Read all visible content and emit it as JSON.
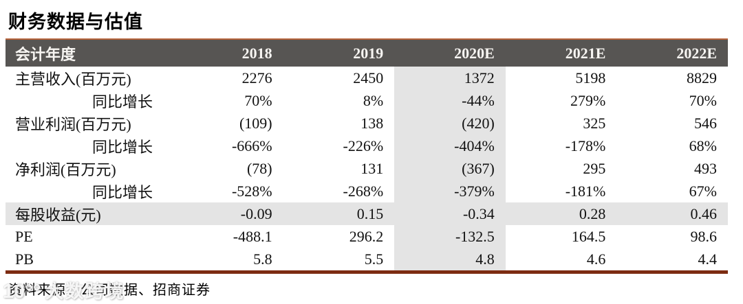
{
  "title": "财务数据与估值",
  "table": {
    "header": [
      "会计年度",
      "2018",
      "2019",
      "2020E",
      "2021E",
      "2022E"
    ],
    "highlight_column": "2020E",
    "rows": [
      {
        "label": "主营收入(百万元)",
        "indent": false,
        "highlight_row": false,
        "values": [
          "2276",
          "2450",
          "1372",
          "5198",
          "8829"
        ]
      },
      {
        "label": "同比增长",
        "indent": true,
        "highlight_row": false,
        "values": [
          "70%",
          "8%",
          "-44%",
          "279%",
          "70%"
        ]
      },
      {
        "label": "营业利润(百万元)",
        "indent": false,
        "highlight_row": false,
        "values": [
          "(109)",
          "138",
          "(420)",
          "325",
          "546"
        ]
      },
      {
        "label": "同比增长",
        "indent": true,
        "highlight_row": false,
        "values": [
          "-666%",
          "-226%",
          "-404%",
          "-178%",
          "68%"
        ]
      },
      {
        "label": "净利润(百万元)",
        "indent": false,
        "highlight_row": false,
        "values": [
          "(78)",
          "131",
          "(367)",
          "295",
          "493"
        ]
      },
      {
        "label": "同比增长",
        "indent": true,
        "highlight_row": false,
        "values": [
          "-528%",
          "-268%",
          "-379%",
          "-181%",
          "67%"
        ]
      },
      {
        "label": "每股收益(元)",
        "indent": false,
        "highlight_row": true,
        "values": [
          "-0.09",
          "0.15",
          "-0.34",
          "0.28",
          "0.46"
        ]
      },
      {
        "label": "PE",
        "indent": false,
        "highlight_row": false,
        "values": [
          "-488.1",
          "296.2",
          "-132.5",
          "164.5",
          "98.6"
        ]
      },
      {
        "label": "PB",
        "indent": false,
        "highlight_row": false,
        "values": [
          "5.8",
          "5.5",
          "4.8",
          "4.6",
          "4.4"
        ]
      }
    ]
  },
  "footer": {
    "source": "资料来源：公司数据、招商证券"
  },
  "watermark": {
    "logo": "10°°",
    "text": "大数跨境"
  },
  "colors": {
    "header_bg": "#575553",
    "header_text": "#f7f5f2",
    "top_rule": "#b5623a",
    "bottom_rule": "#7d2c12",
    "highlight_bg": "#e4e4e4",
    "body_text": "#111111"
  }
}
